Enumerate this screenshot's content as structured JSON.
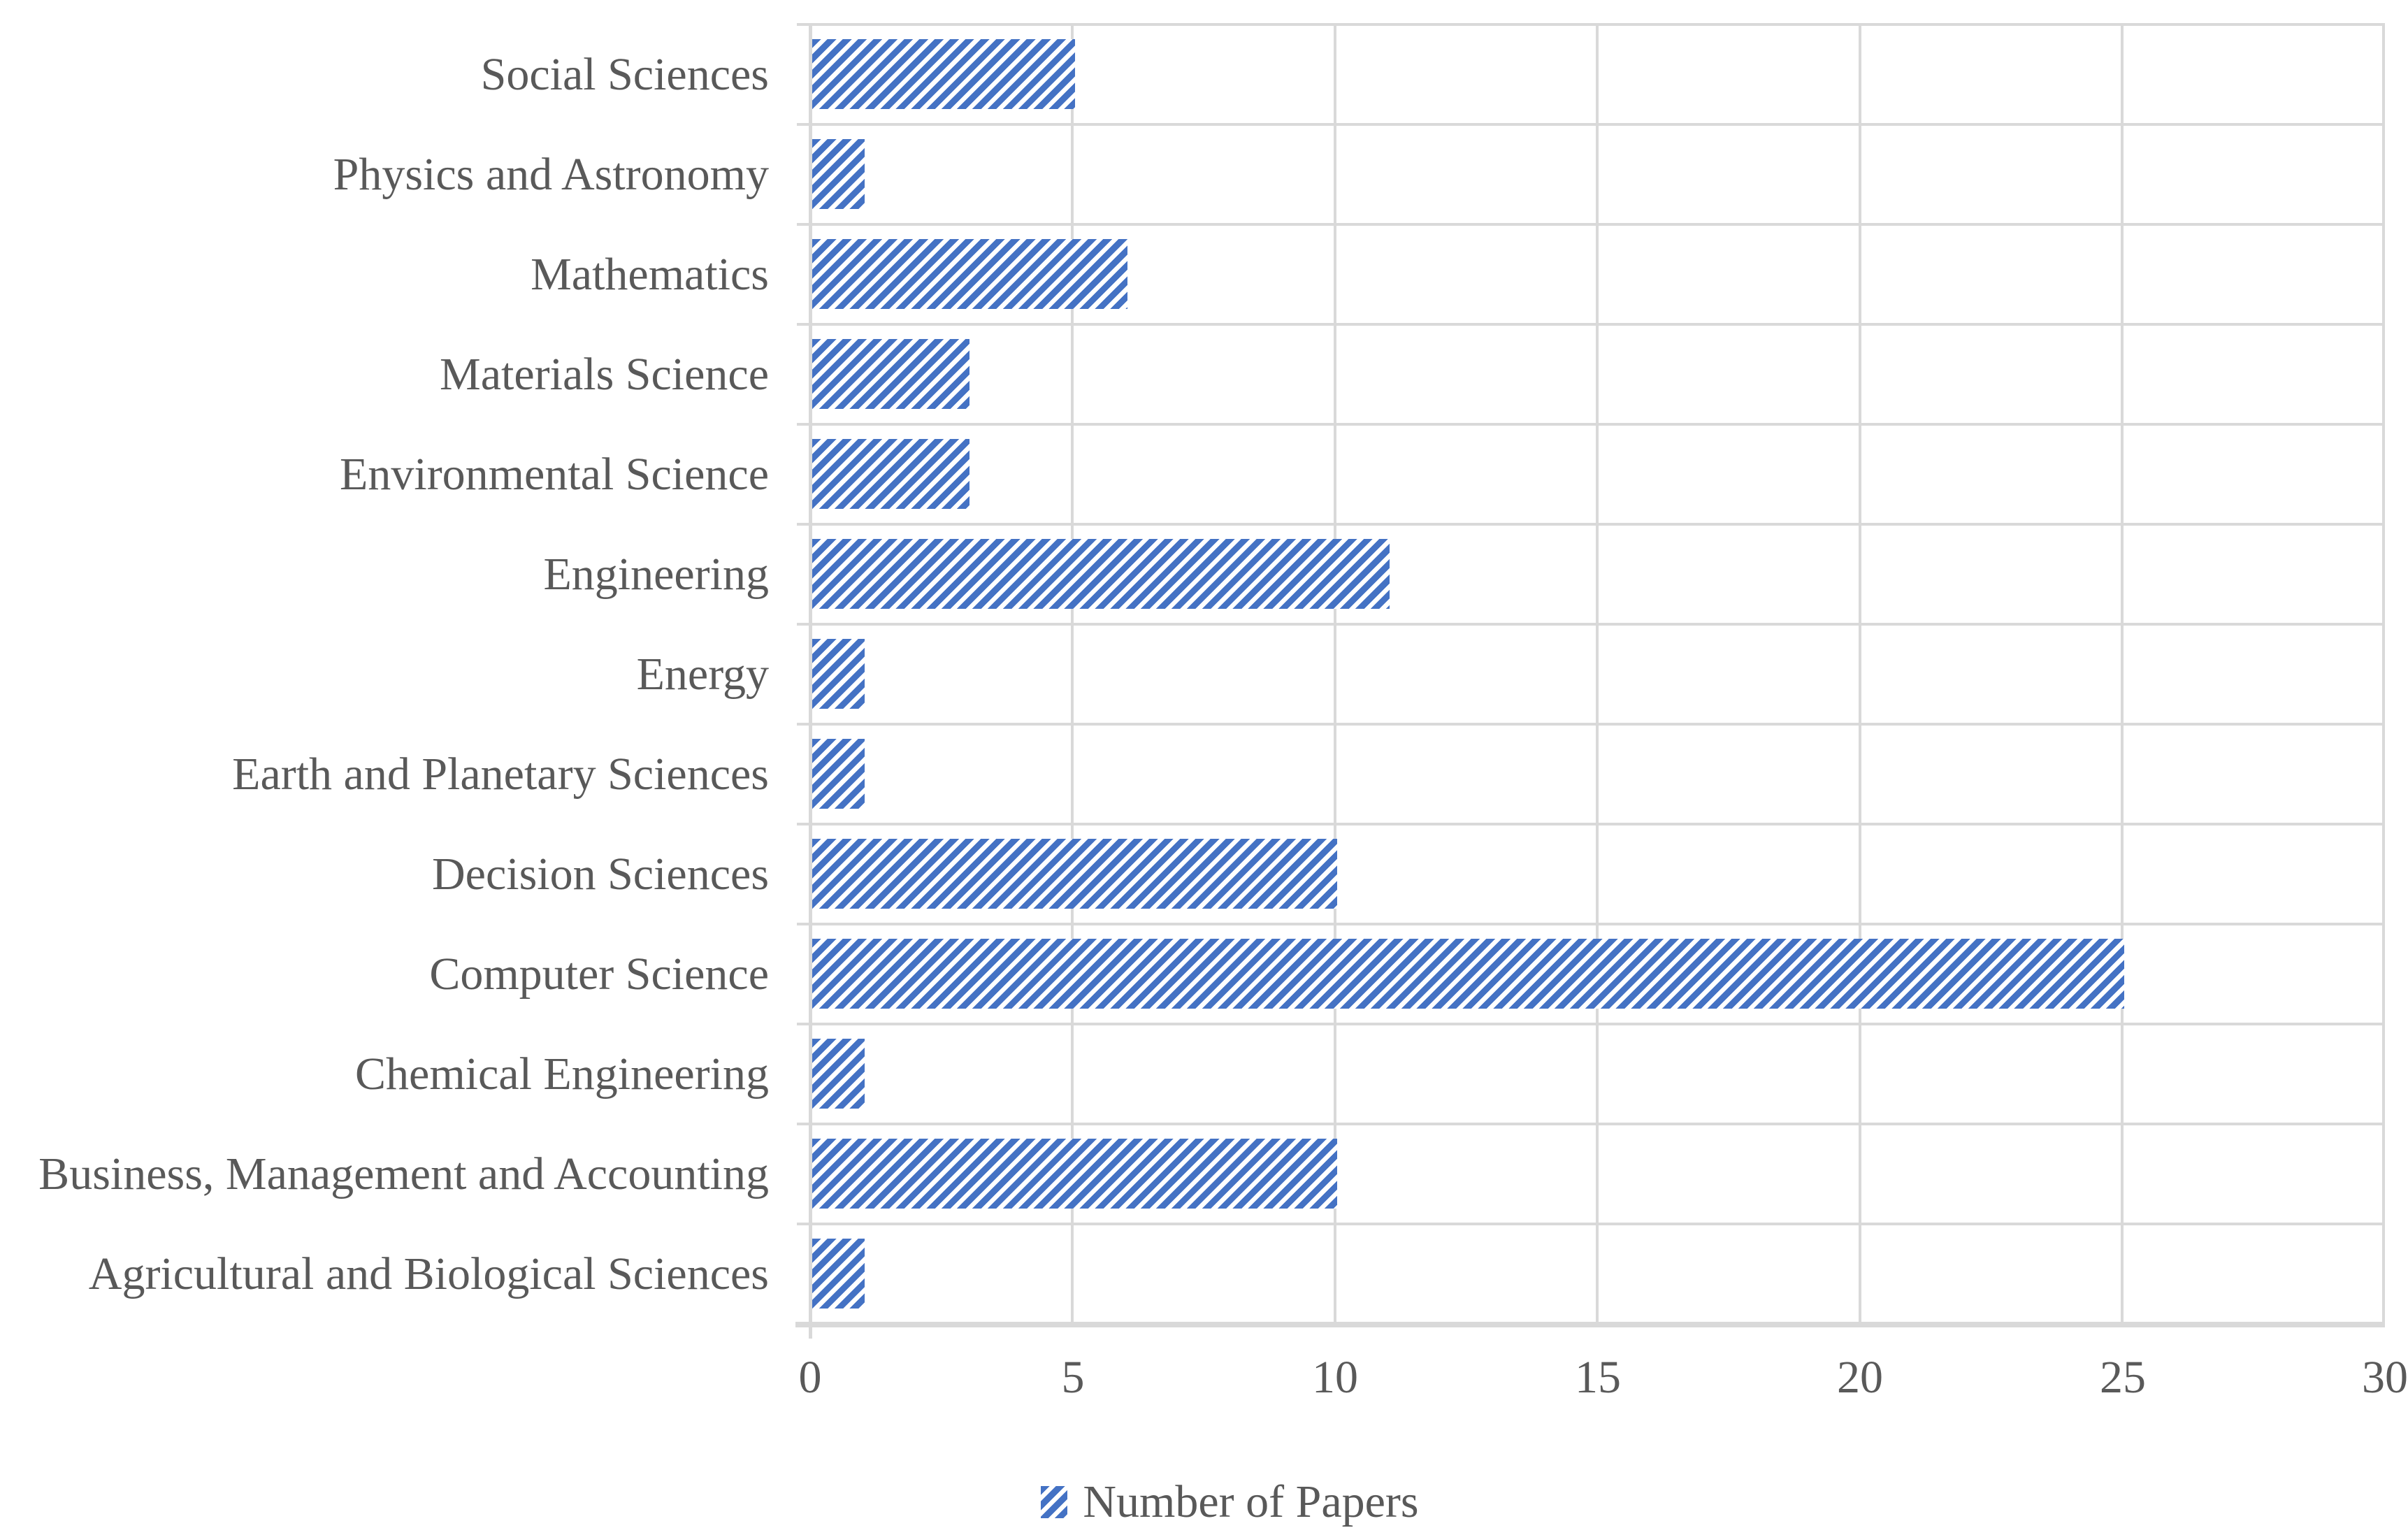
{
  "chart_data": {
    "type": "bar",
    "orientation": "horizontal",
    "title": "",
    "xlabel": "",
    "ylabel": "",
    "categories": [
      "Social Sciences",
      "Physics and Astronomy",
      "Mathematics",
      "Materials Science",
      "Environmental Science",
      "Engineering",
      "Energy",
      "Earth and Planetary Sciences",
      "Decision Sciences",
      "Computer Science",
      "Chemical Engineering",
      "Business, Management and Accounting",
      "Agricultural and Biological Sciences"
    ],
    "values": [
      5,
      1,
      6,
      3,
      3,
      11,
      1,
      1,
      10,
      25,
      1,
      10,
      1
    ],
    "series_name": "Number of Papers",
    "xlim": [
      0,
      30
    ],
    "x_ticks": [
      "0",
      "5",
      "10",
      "15",
      "20",
      "25",
      "30"
    ],
    "grid": true,
    "legend_position": "bottom",
    "bar_color": "#4472C4",
    "bar_fill_style": "diagonal-hatch",
    "gridline_color": "#D9D9D9",
    "text_color": "#595959"
  },
  "legend": {
    "label": "Number of Papers"
  }
}
